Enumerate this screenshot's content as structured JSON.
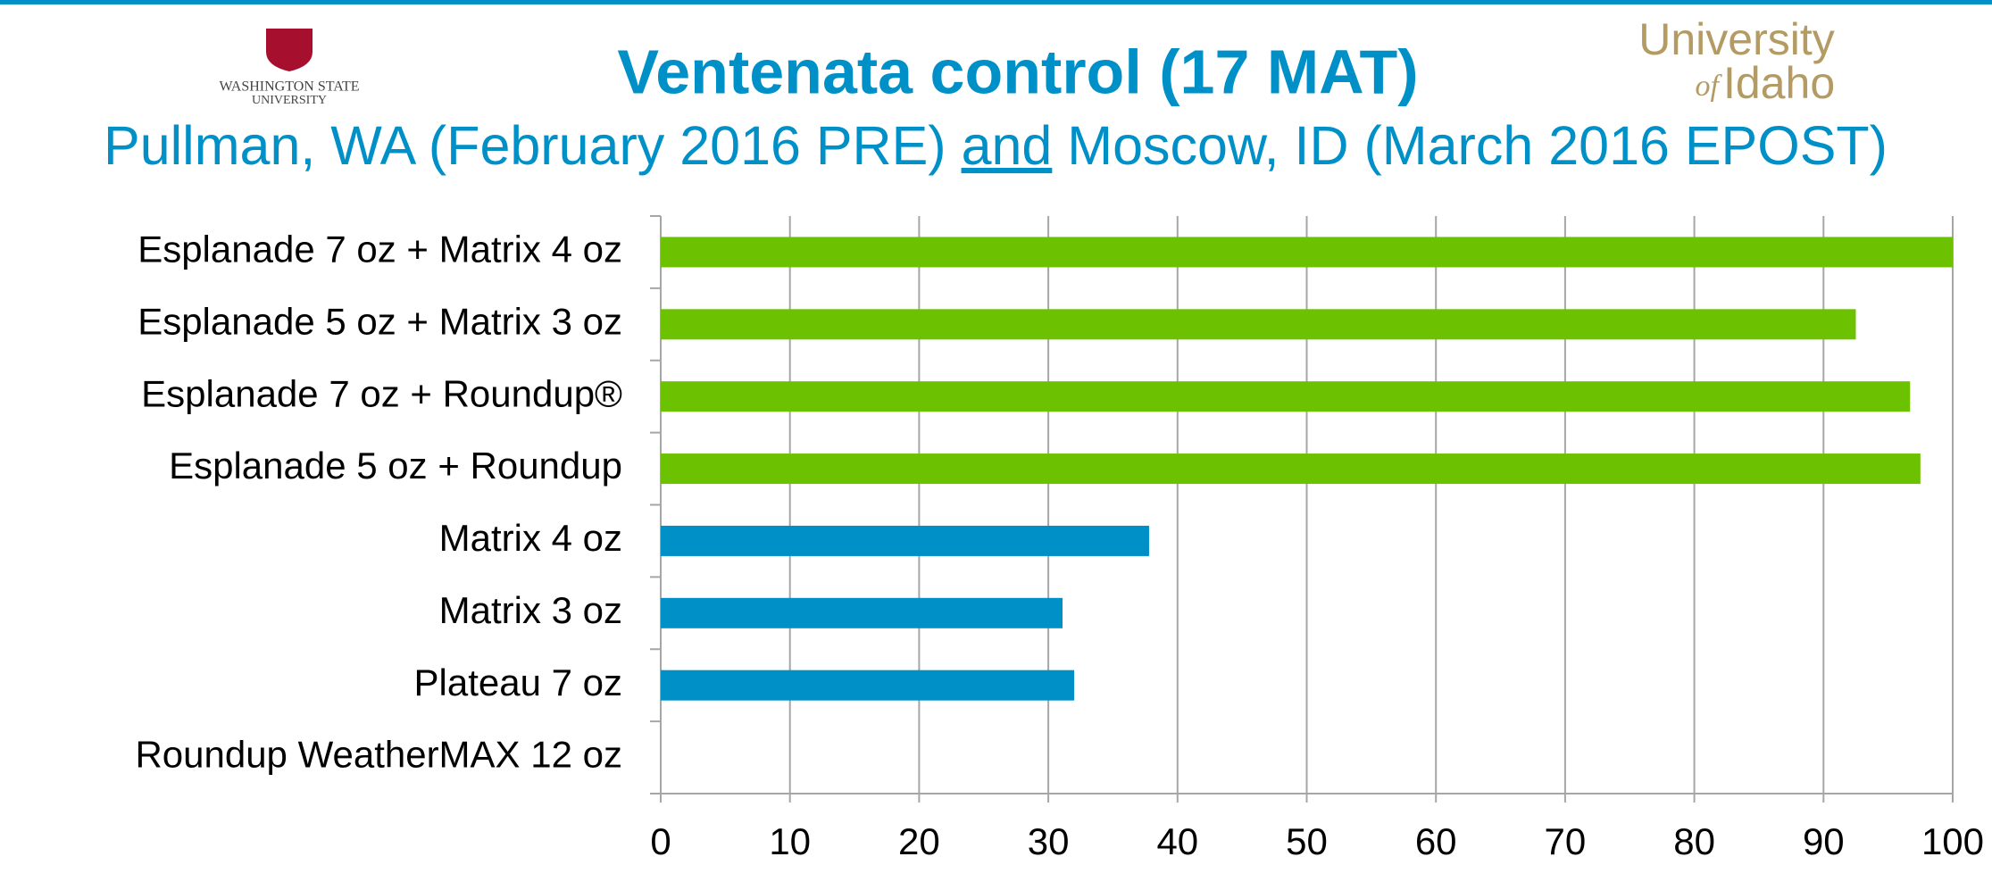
{
  "chart_data": {
    "type": "barh",
    "title": "Ventenata control (17 MAT)",
    "subtitle": [
      "Pullman, WA  (February 2016 PRE) ",
      "and",
      " Moscow, ID (March 2016 EPOST)"
    ],
    "categories": [
      "Esplanade 7 oz + Matrix 4 oz",
      "Esplanade 5 oz + Matrix 3 oz",
      "Esplanade 7 oz + Roundup®",
      "Esplanade 5 oz + Roundup",
      "Matrix 4 oz",
      "Matrix 3 oz",
      "Plateau 7 oz",
      "Roundup WeatherMAX 12 oz"
    ],
    "values": [
      100,
      92.5,
      96.7,
      97.5,
      37.8,
      31.1,
      32,
      0
    ],
    "colors": [
      "#6cc100",
      "#6cc100",
      "#6cc100",
      "#6cc100",
      "#0090c8",
      "#0090c8",
      "#0090c8",
      "#0090c8"
    ],
    "xlim": [
      0,
      100
    ],
    "xticks": [
      0,
      10,
      20,
      30,
      40,
      50,
      60,
      70,
      80,
      90,
      100
    ],
    "grid": true
  },
  "logos": {
    "left": [
      "WASHINGTON STATE",
      "UNIVERSITY"
    ],
    "right": [
      "University",
      "of",
      "Idaho"
    ]
  }
}
